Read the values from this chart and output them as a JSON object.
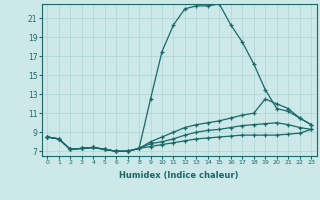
{
  "xlabel": "Humidex (Indice chaleur)",
  "ylabel": "",
  "bg_color": "#cce8e8",
  "line_color": "#1a6868",
  "grid_color": "#b0d4d4",
  "xlim": [
    -0.5,
    23.5
  ],
  "ylim": [
    6.5,
    22.5
  ],
  "yticks": [
    7,
    9,
    11,
    13,
    15,
    17,
    19,
    21
  ],
  "xticks": [
    0,
    1,
    2,
    3,
    4,
    5,
    6,
    7,
    8,
    9,
    10,
    11,
    12,
    13,
    14,
    15,
    16,
    17,
    18,
    19,
    20,
    21,
    22,
    23
  ],
  "series": [
    {
      "x": [
        0,
        1,
        2,
        3,
        4,
        5,
        6,
        7,
        8,
        9,
        10,
        11,
        12,
        13,
        14,
        15,
        16,
        17,
        18,
        19,
        20,
        21,
        22,
        23
      ],
      "y": [
        8.5,
        8.3,
        7.2,
        7.3,
        7.4,
        7.2,
        7.0,
        7.0,
        7.3,
        12.5,
        17.5,
        20.3,
        22.0,
        22.3,
        22.3,
        22.5,
        20.3,
        18.5,
        16.2,
        13.5,
        11.5,
        11.2,
        10.5,
        9.8
      ]
    },
    {
      "x": [
        0,
        1,
        2,
        3,
        4,
        5,
        6,
        7,
        8,
        9,
        10,
        11,
        12,
        13,
        14,
        15,
        16,
        17,
        18,
        19,
        20,
        21,
        22,
        23
      ],
      "y": [
        8.5,
        8.3,
        7.2,
        7.3,
        7.4,
        7.2,
        7.0,
        7.0,
        7.3,
        8.0,
        8.5,
        9.0,
        9.5,
        9.8,
        10.0,
        10.2,
        10.5,
        10.8,
        11.0,
        12.5,
        12.0,
        11.5,
        10.5,
        9.8
      ]
    },
    {
      "x": [
        0,
        1,
        2,
        3,
        4,
        5,
        6,
        7,
        8,
        9,
        10,
        11,
        12,
        13,
        14,
        15,
        16,
        17,
        18,
        19,
        20,
        21,
        22,
        23
      ],
      "y": [
        8.5,
        8.3,
        7.2,
        7.3,
        7.4,
        7.2,
        7.0,
        7.0,
        7.3,
        7.8,
        8.0,
        8.3,
        8.7,
        9.0,
        9.2,
        9.3,
        9.5,
        9.7,
        9.8,
        9.9,
        10.0,
        9.8,
        9.5,
        9.3
      ]
    },
    {
      "x": [
        0,
        1,
        2,
        3,
        4,
        5,
        6,
        7,
        8,
        9,
        10,
        11,
        12,
        13,
        14,
        15,
        16,
        17,
        18,
        19,
        20,
        21,
        22,
        23
      ],
      "y": [
        8.5,
        8.3,
        7.2,
        7.3,
        7.4,
        7.2,
        7.0,
        7.0,
        7.3,
        7.5,
        7.7,
        7.9,
        8.1,
        8.3,
        8.4,
        8.5,
        8.6,
        8.7,
        8.7,
        8.7,
        8.7,
        8.8,
        8.9,
        9.3
      ]
    }
  ]
}
